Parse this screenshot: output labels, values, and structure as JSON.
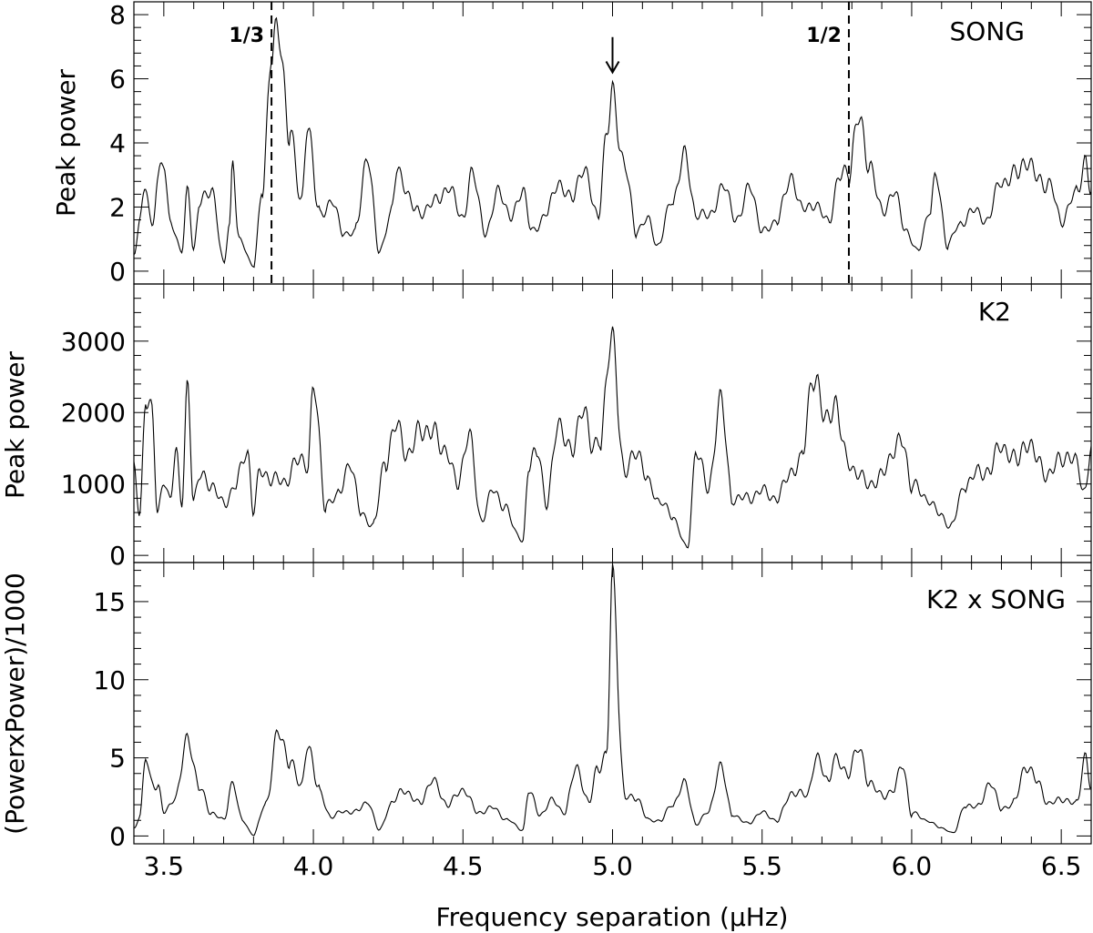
{
  "figure": {
    "xlabel": "Frequency separation (μHz)"
  },
  "chart_data": [
    {
      "type": "line",
      "panel": "song",
      "label": "SONG",
      "ylabel": "Peak power",
      "xlim": [
        3.4,
        6.6
      ],
      "ylim": [
        -0.4,
        8.4
      ],
      "yticks": [
        0,
        2,
        4,
        6,
        8
      ],
      "ytick_labels": [
        "0",
        "2",
        "4",
        "6",
        "8"
      ],
      "reference_lines": [
        {
          "x": 3.86,
          "label": "1/3"
        },
        {
          "x": 5.79,
          "label": "1/2"
        }
      ],
      "arrow_annotation": {
        "x": 5.0,
        "y_from": 7.3,
        "y_to": 6.2,
        "direction": "down"
      },
      "peaks": [
        [
          3.4,
          0.5
        ],
        [
          3.42,
          1.6
        ],
        [
          3.44,
          2.6
        ],
        [
          3.46,
          1.4
        ],
        [
          3.48,
          2.9
        ],
        [
          3.5,
          3.3
        ],
        [
          3.52,
          1.6
        ],
        [
          3.56,
          0.6
        ],
        [
          3.58,
          2.6
        ],
        [
          3.6,
          0.7
        ],
        [
          3.62,
          2.1
        ],
        [
          3.66,
          2.6
        ],
        [
          3.7,
          0.2
        ],
        [
          3.72,
          1.5
        ],
        [
          3.73,
          3.5
        ],
        [
          3.75,
          1.0
        ],
        [
          3.8,
          0.2
        ],
        [
          3.83,
          2.5
        ],
        [
          3.86,
          7.0
        ],
        [
          3.88,
          7.3
        ],
        [
          3.92,
          4.6
        ],
        [
          3.96,
          2.0
        ],
        [
          3.98,
          4.7
        ],
        [
          4.02,
          1.7
        ],
        [
          4.06,
          2.2
        ],
        [
          4.1,
          1.2
        ],
        [
          4.14,
          1.2
        ],
        [
          4.18,
          3.6
        ],
        [
          4.22,
          0.6
        ],
        [
          4.26,
          1.8
        ],
        [
          4.28,
          3.1
        ],
        [
          4.35,
          1.8
        ],
        [
          4.4,
          2.1
        ],
        [
          4.45,
          2.6
        ],
        [
          4.5,
          1.7
        ],
        [
          4.53,
          3.0
        ],
        [
          4.58,
          1.2
        ],
        [
          4.62,
          2.6
        ],
        [
          4.66,
          1.6
        ],
        [
          4.7,
          2.6
        ],
        [
          4.73,
          1.2
        ],
        [
          4.78,
          1.8
        ],
        [
          4.82,
          2.8
        ],
        [
          4.86,
          2.2
        ],
        [
          4.9,
          3.2
        ],
        [
          4.95,
          1.8
        ],
        [
          4.98,
          4.1
        ],
        [
          5.0,
          5.6
        ],
        [
          5.04,
          3.2
        ],
        [
          5.08,
          1.3
        ],
        [
          5.12,
          1.6
        ],
        [
          5.15,
          0.8
        ],
        [
          5.2,
          2.2
        ],
        [
          5.24,
          3.6
        ],
        [
          5.28,
          1.8
        ],
        [
          5.32,
          1.7
        ],
        [
          5.37,
          2.6
        ],
        [
          5.42,
          1.6
        ],
        [
          5.46,
          2.7
        ],
        [
          5.5,
          1.2
        ],
        [
          5.55,
          1.6
        ],
        [
          5.6,
          3.0
        ],
        [
          5.63,
          1.9
        ],
        [
          5.67,
          2.1
        ],
        [
          5.72,
          1.6
        ],
        [
          5.76,
          2.9
        ],
        [
          5.79,
          3.2
        ],
        [
          5.82,
          4.7
        ],
        [
          5.86,
          3.4
        ],
        [
          5.9,
          1.8
        ],
        [
          5.94,
          2.5
        ],
        [
          5.98,
          1.3
        ],
        [
          6.02,
          0.6
        ],
        [
          6.06,
          1.9
        ],
        [
          6.08,
          2.9
        ],
        [
          6.12,
          0.9
        ],
        [
          6.16,
          1.4
        ],
        [
          6.2,
          1.9
        ],
        [
          6.25,
          1.6
        ],
        [
          6.3,
          2.8
        ],
        [
          6.35,
          3.0
        ],
        [
          6.38,
          3.5
        ],
        [
          6.42,
          2.9
        ],
        [
          6.46,
          2.7
        ],
        [
          6.5,
          1.6
        ],
        [
          6.55,
          2.4
        ],
        [
          6.58,
          3.5
        ],
        [
          6.6,
          2.4
        ]
      ]
    },
    {
      "type": "line",
      "panel": "k2",
      "label": "K2",
      "ylabel": "Peak power",
      "xlim": [
        3.4,
        6.6
      ],
      "ylim": [
        -100,
        3800
      ],
      "yticks": [
        0,
        1000,
        2000,
        3000
      ],
      "ytick_labels": [
        "0",
        "1000",
        "2000",
        "3000"
      ],
      "peaks": [
        [
          3.4,
          1300
        ],
        [
          3.42,
          550
        ],
        [
          3.44,
          2150
        ],
        [
          3.46,
          2100
        ],
        [
          3.48,
          600
        ],
        [
          3.5,
          1000
        ],
        [
          3.52,
          800
        ],
        [
          3.54,
          1500
        ],
        [
          3.56,
          700
        ],
        [
          3.58,
          2400
        ],
        [
          3.6,
          800
        ],
        [
          3.62,
          1100
        ],
        [
          3.66,
          1000
        ],
        [
          3.7,
          700
        ],
        [
          3.74,
          1000
        ],
        [
          3.78,
          1450
        ],
        [
          3.8,
          650
        ],
        [
          3.82,
          1150
        ],
        [
          3.86,
          1100
        ],
        [
          3.9,
          1000
        ],
        [
          3.94,
          1300
        ],
        [
          3.98,
          1300
        ],
        [
          4.0,
          2350
        ],
        [
          4.04,
          750
        ],
        [
          4.08,
          800
        ],
        [
          4.12,
          1300
        ],
        [
          4.16,
          600
        ],
        [
          4.2,
          400
        ],
        [
          4.24,
          1350
        ],
        [
          4.28,
          1800
        ],
        [
          4.32,
          1400
        ],
        [
          4.36,
          1800
        ],
        [
          4.4,
          1700
        ],
        [
          4.44,
          1500
        ],
        [
          4.48,
          1000
        ],
        [
          4.52,
          1700
        ],
        [
          4.56,
          500
        ],
        [
          4.6,
          900
        ],
        [
          4.64,
          700
        ],
        [
          4.68,
          300
        ],
        [
          4.7,
          200
        ],
        [
          4.72,
          1200
        ],
        [
          4.75,
          1500
        ],
        [
          4.78,
          700
        ],
        [
          4.82,
          1900
        ],
        [
          4.86,
          1400
        ],
        [
          4.9,
          2100
        ],
        [
          4.93,
          1500
        ],
        [
          4.96,
          1700
        ],
        [
          5.0,
          3050
        ],
        [
          5.04,
          1100
        ],
        [
          5.08,
          1500
        ],
        [
          5.12,
          1000
        ],
        [
          5.16,
          750
        ],
        [
          5.2,
          550
        ],
        [
          5.25,
          100
        ],
        [
          5.28,
          1500
        ],
        [
          5.32,
          900
        ],
        [
          5.36,
          2200
        ],
        [
          5.4,
          800
        ],
        [
          5.45,
          800
        ],
        [
          5.5,
          900
        ],
        [
          5.55,
          800
        ],
        [
          5.6,
          1200
        ],
        [
          5.63,
          1300
        ],
        [
          5.67,
          2550
        ],
        [
          5.71,
          1900
        ],
        [
          5.74,
          2150
        ],
        [
          5.78,
          1400
        ],
        [
          5.82,
          1100
        ],
        [
          5.88,
          1000
        ],
        [
          5.94,
          1450
        ],
        [
          5.97,
          1600
        ],
        [
          6.0,
          1000
        ],
        [
          6.05,
          800
        ],
        [
          6.1,
          550
        ],
        [
          6.13,
          400
        ],
        [
          6.18,
          1000
        ],
        [
          6.22,
          1150
        ],
        [
          6.26,
          1200
        ],
        [
          6.3,
          1550
        ],
        [
          6.35,
          1300
        ],
        [
          6.38,
          1600
        ],
        [
          6.42,
          1350
        ],
        [
          6.46,
          1100
        ],
        [
          6.5,
          1400
        ],
        [
          6.55,
          1300
        ],
        [
          6.58,
          900
        ],
        [
          6.6,
          1500
        ]
      ]
    },
    {
      "type": "line",
      "panel": "product",
      "label": "K2 x SONG",
      "ylabel": "(PowerxPower)/1000",
      "xlim": [
        3.4,
        6.6
      ],
      "ylim": [
        -0.5,
        17.5
      ],
      "xticks": [
        3.5,
        4.0,
        4.5,
        5.0,
        5.5,
        6.0,
        6.5
      ],
      "xtick_labels": [
        "3.5",
        "4.0",
        "4.5",
        "5.0",
        "5.5",
        "6.0",
        "6.5"
      ],
      "yticks": [
        0,
        5,
        10,
        15
      ],
      "ytick_labels": [
        "0",
        "5",
        "10",
        "15"
      ],
      "peaks": [
        [
          3.4,
          0.5
        ],
        [
          3.42,
          1.2
        ],
        [
          3.44,
          5.0
        ],
        [
          3.46,
          3.5
        ],
        [
          3.48,
          3.2
        ],
        [
          3.5,
          1.5
        ],
        [
          3.54,
          2.5
        ],
        [
          3.58,
          6.3
        ],
        [
          3.62,
          3.0
        ],
        [
          3.66,
          1.5
        ],
        [
          3.7,
          1.0
        ],
        [
          3.73,
          3.5
        ],
        [
          3.76,
          1.0
        ],
        [
          3.8,
          0.1
        ],
        [
          3.84,
          2.0
        ],
        [
          3.88,
          6.5
        ],
        [
          3.92,
          5.0
        ],
        [
          3.96,
          3.0
        ],
        [
          3.98,
          6.0
        ],
        [
          4.02,
          2.8
        ],
        [
          4.06,
          1.2
        ],
        [
          4.1,
          1.6
        ],
        [
          4.14,
          1.5
        ],
        [
          4.18,
          2.2
        ],
        [
          4.22,
          0.4
        ],
        [
          4.26,
          2.0
        ],
        [
          4.3,
          3.0
        ],
        [
          4.35,
          2.1
        ],
        [
          4.4,
          3.5
        ],
        [
          4.45,
          2.0
        ],
        [
          4.5,
          3.0
        ],
        [
          4.55,
          1.5
        ],
        [
          4.6,
          1.8
        ],
        [
          4.65,
          1.0
        ],
        [
          4.7,
          0.4
        ],
        [
          4.72,
          2.8
        ],
        [
          4.76,
          1.4
        ],
        [
          4.8,
          2.3
        ],
        [
          4.84,
          1.5
        ],
        [
          4.88,
          4.5
        ],
        [
          4.92,
          2.0
        ],
        [
          4.95,
          4.5
        ],
        [
          4.98,
          5.0
        ],
        [
          5.0,
          16.7
        ],
        [
          5.04,
          2.4
        ],
        [
          5.08,
          2.5
        ],
        [
          5.12,
          1.0
        ],
        [
          5.16,
          1.0
        ],
        [
          5.2,
          2.0
        ],
        [
          5.24,
          3.4
        ],
        [
          5.28,
          0.8
        ],
        [
          5.32,
          1.5
        ],
        [
          5.36,
          4.5
        ],
        [
          5.4,
          1.4
        ],
        [
          5.45,
          0.8
        ],
        [
          5.5,
          1.5
        ],
        [
          5.55,
          1.0
        ],
        [
          5.6,
          2.8
        ],
        [
          5.65,
          2.6
        ],
        [
          5.68,
          5.0
        ],
        [
          5.72,
          3.5
        ],
        [
          5.74,
          5.0
        ],
        [
          5.78,
          4.0
        ],
        [
          5.82,
          5.5
        ],
        [
          5.86,
          3.5
        ],
        [
          5.9,
          2.5
        ],
        [
          5.94,
          3.0
        ],
        [
          5.97,
          4.5
        ],
        [
          6.0,
          1.5
        ],
        [
          6.05,
          1.0
        ],
        [
          6.1,
          0.5
        ],
        [
          6.14,
          0.2
        ],
        [
          6.18,
          2.0
        ],
        [
          6.22,
          1.8
        ],
        [
          6.26,
          3.4
        ],
        [
          6.3,
          1.8
        ],
        [
          6.34,
          2.0
        ],
        [
          6.38,
          4.5
        ],
        [
          6.42,
          3.5
        ],
        [
          6.46,
          2.0
        ],
        [
          6.5,
          2.4
        ],
        [
          6.55,
          2.0
        ],
        [
          6.58,
          5.2
        ],
        [
          6.6,
          3.0
        ]
      ]
    }
  ]
}
